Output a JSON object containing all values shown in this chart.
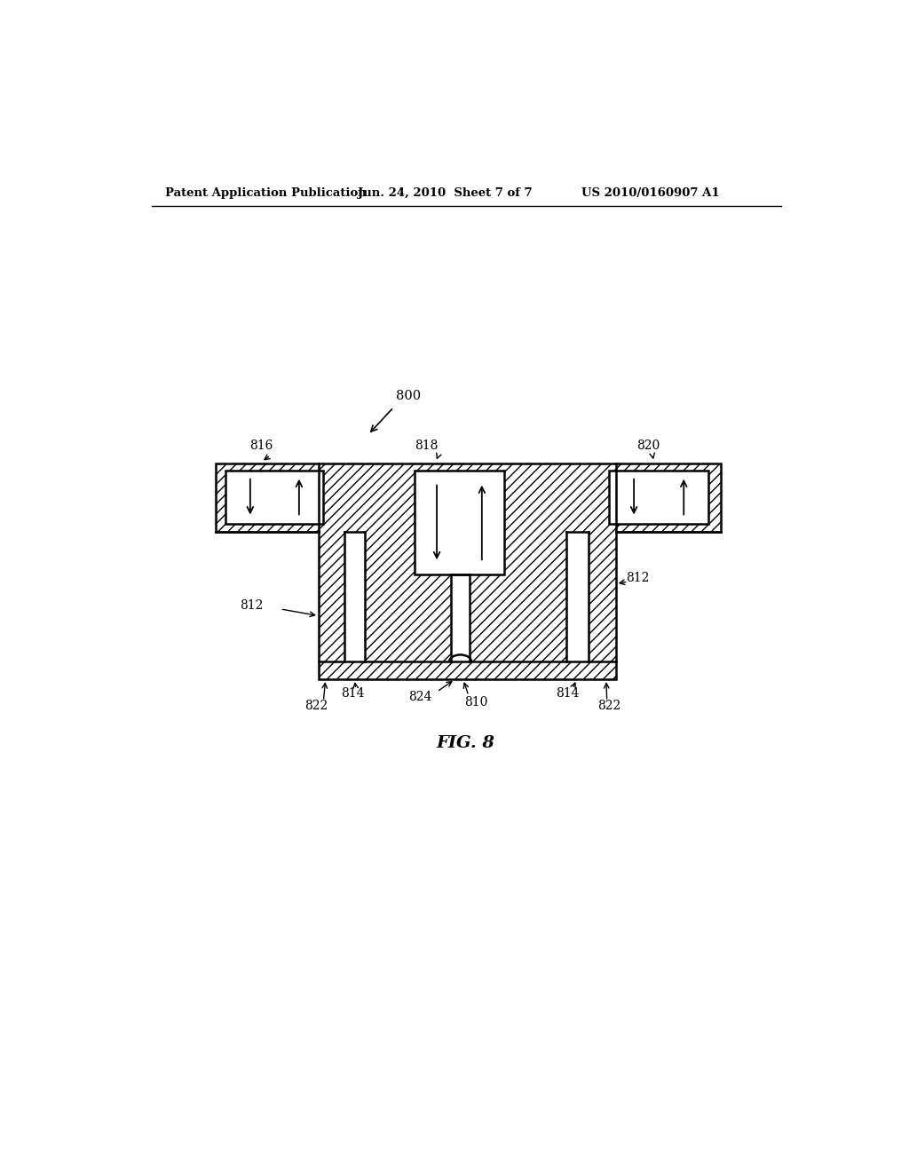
{
  "header_left": "Patent Application Publication",
  "header_mid": "Jun. 24, 2010  Sheet 7 of 7",
  "header_right": "US 2010/0160907 A1",
  "fig_label": "FIG. 8",
  "bg_color": "#ffffff",
  "label_800": "800",
  "label_816": "816",
  "label_818": "818",
  "label_820": "820",
  "label_812a": "812",
  "label_812b": "812",
  "label_814a": "814",
  "label_814b": "814",
  "label_822a": "822",
  "label_822b": "822",
  "label_824": "824",
  "label_810": "810"
}
